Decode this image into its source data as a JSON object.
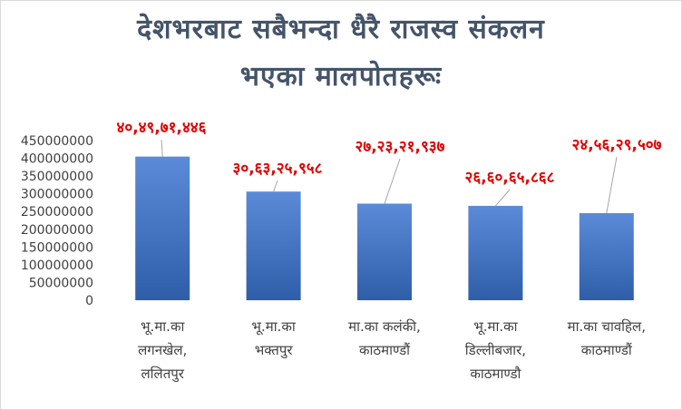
{
  "chart_data": {
    "type": "bar",
    "title_lines": [
      "देशभरबाट सबैभन्दा धैरै राजस्व संकलन",
      "भएका मालपोतहरूः"
    ],
    "categories": [
      [
        "भू.मा.का",
        "लगनखेल,",
        "ललितपुर"
      ],
      [
        "भू.मा.का",
        "भक्तपुर"
      ],
      [
        "मा.का कलंकी,",
        "काठमाण्डौं"
      ],
      [
        "भू.मा.का",
        "डिल्लीबजार,",
        "काठमाण्डौ"
      ],
      [
        "मा.का चावहिल,",
        "काठमाण्डौं"
      ]
    ],
    "values": [
      404971446,
      306325958,
      272321937,
      266065868,
      245629507
    ],
    "data_labels": [
      "४०,४९,७१,४४६",
      "३०,६३,२५,९५८",
      "२७,२३,२१,९३७",
      "२६,६०,६५,८६८",
      "२४,५६,२९,५०७"
    ],
    "y_ticks": [
      0,
      50000000,
      100000000,
      150000000,
      200000000,
      250000000,
      300000000,
      350000000,
      400000000,
      450000000
    ],
    "ylim": [
      0,
      450000000
    ],
    "grid": false,
    "legend": "none",
    "colors": {
      "bar_top": "#5b8bd8",
      "bar_bottom": "#2f5ea9",
      "label": "#e00000",
      "title": "#44546a",
      "axis_text": "#404040",
      "leader": "#a6a6a6"
    }
  }
}
